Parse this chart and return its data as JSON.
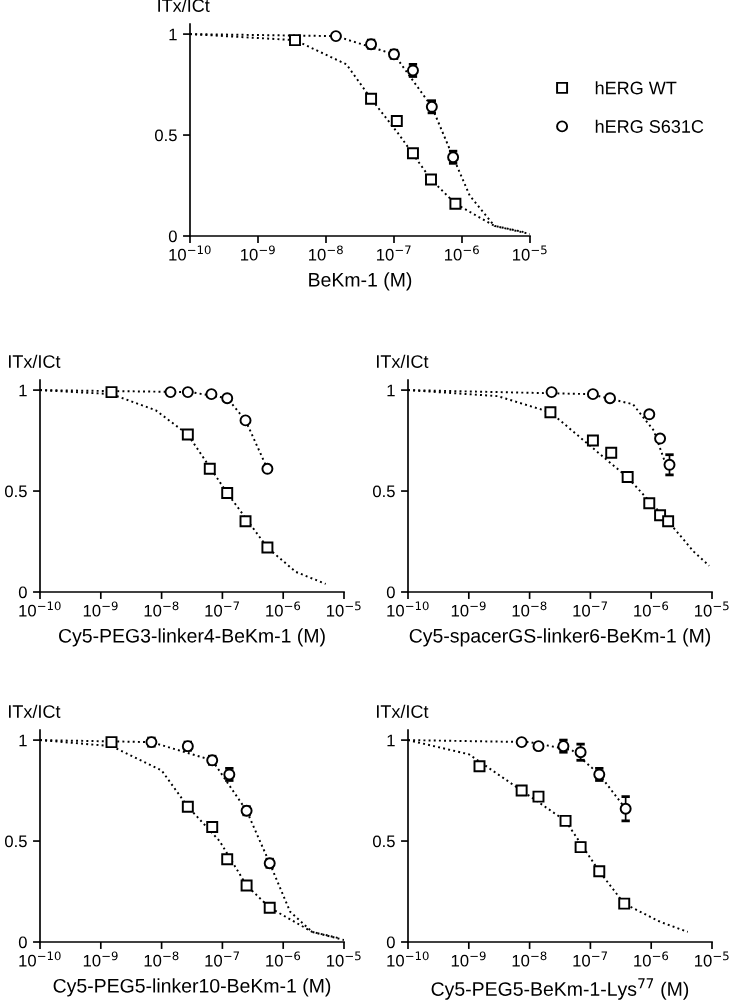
{
  "chart_data": [
    {
      "type": "scatter",
      "xlabel": "BeKm-1 (M)",
      "ylabel": "ITx/ICt",
      "log": "x",
      "xlim": [
        1e-10,
        1e-05
      ],
      "xticks": [
        {
          "value": 1e-10,
          "label": "10$^{−10}$"
        },
        {
          "value": 1e-09,
          "label": "10$^{−9}$"
        },
        {
          "value": 1e-08,
          "label": "10$^{−8}$"
        },
        {
          "value": 1e-07,
          "label": "10$^{−7}$"
        },
        {
          "value": 1e-06,
          "label": "10$^{−6}$"
        },
        {
          "value": 1e-05,
          "label": "10$^{−5}$"
        }
      ],
      "ylim": [
        0,
        1.05
      ],
      "yticks": [
        0,
        0.5,
        1
      ],
      "grid": false,
      "legend": "right",
      "series": [
        {
          "name": "hERG WT",
          "color": "#000000",
          "marker": "square",
          "x": [
            3.5e-09,
            4.6e-08,
            1.1e-07,
            1.9e-07,
            3.5e-07,
            8e-07
          ],
          "values": [
            0.97,
            0.68,
            0.57,
            0.41,
            0.28,
            0.16
          ]
        },
        {
          "name": "hERG S631C",
          "color": "#000000",
          "marker": "circle",
          "x": [
            1.4e-08,
            4.6e-08,
            1e-07,
            1.9e-07,
            3.6e-07,
            7.4e-07
          ],
          "values": [
            0.99,
            0.95,
            0.9,
            0.82,
            0.64,
            0.39
          ],
          "errors": [
            0.01,
            0.02,
            0.02,
            0.03,
            0.03,
            0.03
          ]
        },
        {
          "type": "line",
          "color": "#000000",
          "marker": "none",
          "line_style": "dotted",
          "x": [
            1e-10,
            3.5e-09,
            2e-08,
            4.6e-08,
            1.2e-07,
            3.5e-07,
            8e-07,
            3e-06,
            8e-06
          ],
          "values": [
            1,
            0.97,
            0.85,
            0.68,
            0.5,
            0.28,
            0.16,
            0.05,
            0.02
          ]
        },
        {
          "type": "line",
          "color": "#000000",
          "marker": "none",
          "line_style": "dotted",
          "x": [
            1e-10,
            1.4e-08,
            1e-07,
            3.6e-07,
            7.4e-07,
            1.3e-06,
            3e-06,
            1e-05
          ],
          "values": [
            1,
            0.99,
            0.9,
            0.64,
            0.39,
            0.2,
            0.05,
            0.01
          ]
        }
      ]
    },
    {
      "type": "scatter",
      "xlabel": "Cy5-PEG3-linker4-BeKm-1 (M)",
      "ylabel": "ITx/ICt",
      "log": "x",
      "xlim": [
        1e-10,
        1e-05
      ],
      "xticks": [
        {
          "value": 1e-10,
          "label": "10$^{−10}$"
        },
        {
          "value": 1e-09,
          "label": "10$^{−9}$"
        },
        {
          "value": 1e-08,
          "label": "10$^{−8}$"
        },
        {
          "value": 1e-07,
          "label": "10$^{−7}$"
        },
        {
          "value": 1e-06,
          "label": "10$^{−6}$"
        },
        {
          "value": 1e-05,
          "label": "10$^{−5}$"
        }
      ],
      "ylim": [
        0,
        1.05
      ],
      "yticks": [
        0,
        0.5,
        1
      ],
      "grid": false,
      "series": [
        {
          "color": "#000000",
          "marker": "square",
          "x": [
            1.5e-09,
            2.7e-08,
            6.2e-08,
            1.2e-07,
            2.4e-07,
            5.5e-07
          ],
          "values": [
            0.99,
            0.78,
            0.61,
            0.49,
            0.35,
            0.22
          ]
        },
        {
          "color": "#000000",
          "marker": "circle",
          "x": [
            1.4e-08,
            2.7e-08,
            6.6e-08,
            1.2e-07,
            2.4e-07,
            5.5e-07
          ],
          "values": [
            0.99,
            0.99,
            0.98,
            0.96,
            0.85,
            0.61
          ]
        },
        {
          "type": "line",
          "color": "#000000",
          "marker": "none",
          "line_style": "dotted",
          "x": [
            1e-10,
            1.5e-09,
            8e-09,
            2.7e-08,
            1.2e-07,
            5.5e-07,
            1.6e-06,
            5e-06
          ],
          "values": [
            1,
            0.98,
            0.9,
            0.78,
            0.49,
            0.22,
            0.1,
            0.04
          ]
        },
        {
          "type": "line",
          "color": "#000000",
          "marker": "none",
          "line_style": "dotted",
          "x": [
            1e-10,
            3e-08,
            1.2e-07,
            2.4e-07,
            5.5e-07
          ],
          "values": [
            1,
            0.99,
            0.96,
            0.85,
            0.61
          ]
        }
      ]
    },
    {
      "type": "scatter",
      "xlabel": "Cy5-spacerGS-linker6-BeKm-1 (M)",
      "ylabel": "ITx/ICt",
      "log": "x",
      "xlim": [
        1e-10,
        1e-05
      ],
      "xticks": [
        {
          "value": 1e-10,
          "label": "10$^{−10}$"
        },
        {
          "value": 1e-09,
          "label": "10$^{−9}$"
        },
        {
          "value": 1e-08,
          "label": "10$^{−8}$"
        },
        {
          "value": 1e-07,
          "label": "10$^{−7}$"
        },
        {
          "value": 1e-06,
          "label": "10$^{−6}$"
        },
        {
          "value": 1e-05,
          "label": "10$^{−5}$"
        }
      ],
      "ylim": [
        0,
        1.05
      ],
      "yticks": [
        0,
        0.5,
        1
      ],
      "grid": false,
      "series": [
        {
          "color": "#000000",
          "marker": "square",
          "x": [
            2.2e-08,
            1.1e-07,
            2.2e-07,
            4.1e-07,
            9.3e-07,
            1.4e-06,
            1.9e-06
          ],
          "values": [
            0.89,
            0.75,
            0.69,
            0.57,
            0.44,
            0.38,
            0.35
          ]
        },
        {
          "color": "#000000",
          "marker": "circle",
          "x": [
            2.3e-08,
            1.1e-07,
            2.1e-07,
            9.3e-07,
            1.4e-06,
            2e-06
          ],
          "values": [
            0.99,
            0.98,
            0.96,
            0.88,
            0.76,
            0.63
          ],
          "errors": [
            null,
            null,
            null,
            null,
            null,
            0.05
          ]
        },
        {
          "type": "line",
          "color": "#000000",
          "marker": "none",
          "line_style": "dotted",
          "x": [
            1e-10,
            3e-09,
            2.2e-08,
            4e-07,
            1.9e-06,
            5e-06,
            9e-06
          ],
          "values": [
            1,
            0.97,
            0.89,
            0.57,
            0.35,
            0.2,
            0.13
          ]
        },
        {
          "type": "line",
          "color": "#000000",
          "marker": "none",
          "line_style": "dotted",
          "x": [
            1e-10,
            1e-07,
            5e-07,
            1.1e-06,
            1.9e-06
          ],
          "values": [
            1,
            0.98,
            0.93,
            0.8,
            0.6
          ]
        }
      ]
    },
    {
      "type": "scatter",
      "xlabel": "Cy5-PEG5-linker10-BeKm-1 (M)",
      "ylabel": "ITx/ICt",
      "log": "x",
      "xlim": [
        1e-10,
        1e-05
      ],
      "xticks": [
        {
          "value": 1e-10,
          "label": "10$^{−10}$"
        },
        {
          "value": 1e-09,
          "label": "10$^{−9}$"
        },
        {
          "value": 1e-08,
          "label": "10$^{−8}$"
        },
        {
          "value": 1e-07,
          "label": "10$^{−7}$"
        },
        {
          "value": 1e-06,
          "label": "10$^{−6}$"
        },
        {
          "value": 1e-05,
          "label": "10$^{−5}$"
        }
      ],
      "ylim": [
        0,
        1.05
      ],
      "yticks": [
        0,
        0.5,
        1
      ],
      "grid": false,
      "series": [
        {
          "color": "#000000",
          "marker": "square",
          "x": [
            1.5e-09,
            2.7e-08,
            6.8e-08,
            1.2e-07,
            2.5e-07,
            6e-07
          ],
          "values": [
            0.99,
            0.67,
            0.57,
            0.41,
            0.28,
            0.17
          ]
        },
        {
          "color": "#000000",
          "marker": "circle",
          "x": [
            6.8e-09,
            2.7e-08,
            6.8e-08,
            1.3e-07,
            2.5e-07,
            6e-07
          ],
          "values": [
            0.99,
            0.97,
            0.9,
            0.83,
            0.65,
            0.39
          ],
          "errors": [
            0.02,
            0.02,
            0.02,
            0.03,
            0.02,
            0.02
          ]
        },
        {
          "type": "line",
          "color": "#000000",
          "marker": "none",
          "line_style": "dotted",
          "x": [
            1e-10,
            1.5e-09,
            1e-08,
            2.7e-08,
            9e-08,
            2.5e-07,
            6e-07,
            3e-06,
            8e-06
          ],
          "values": [
            1,
            0.97,
            0.85,
            0.67,
            0.5,
            0.28,
            0.17,
            0.05,
            0.02
          ]
        },
        {
          "type": "line",
          "color": "#000000",
          "marker": "none",
          "line_style": "dotted",
          "x": [
            1e-10,
            6.8e-09,
            6.8e-08,
            2.5e-07,
            6e-07,
            1.3e-06,
            3e-06,
            1e-05
          ],
          "values": [
            1,
            0.99,
            0.9,
            0.65,
            0.39,
            0.15,
            0.05,
            0.01
          ]
        }
      ]
    },
    {
      "type": "scatter",
      "xlabel": "Cy5-PEG5-BeKm-1-Lys$^{77}$ (M)",
      "ylabel": "ITx/ICt",
      "log": "x",
      "xlim": [
        1e-10,
        1e-05
      ],
      "xticks": [
        {
          "value": 1e-10,
          "label": "10$^{−10}$"
        },
        {
          "value": 1e-09,
          "label": "10$^{−9}$"
        },
        {
          "value": 1e-08,
          "label": "10$^{−8}$"
        },
        {
          "value": 1e-07,
          "label": "10$^{−7}$"
        },
        {
          "value": 1e-06,
          "label": "10$^{−6}$"
        },
        {
          "value": 1e-05,
          "label": "10$^{−5}$"
        }
      ],
      "ylim": [
        0,
        1.05
      ],
      "yticks": [
        0,
        0.5,
        1
      ],
      "grid": false,
      "series": [
        {
          "color": "#000000",
          "marker": "square",
          "x": [
            1.5e-09,
            7.4e-09,
            1.4e-08,
            3.9e-08,
            6.9e-08,
            1.4e-07,
            3.6e-07
          ],
          "values": [
            0.87,
            0.75,
            0.72,
            0.6,
            0.47,
            0.35,
            0.19
          ],
          "errors": [
            null,
            null,
            null,
            null,
            0.02,
            null,
            null
          ]
        },
        {
          "color": "#000000",
          "marker": "circle",
          "x": [
            7.4e-09,
            1.4e-08,
            3.6e-08,
            6.9e-08,
            1.4e-07,
            3.8e-07
          ],
          "values": [
            0.99,
            0.97,
            0.97,
            0.94,
            0.83,
            0.66
          ],
          "errors": [
            null,
            null,
            0.03,
            0.04,
            0.03,
            0.06
          ]
        },
        {
          "type": "line",
          "color": "#000000",
          "marker": "none",
          "line_style": "dotted",
          "x": [
            1e-10,
            1e-09,
            7.4e-09,
            3.9e-08,
            1.4e-07,
            3.6e-07,
            1.4e-06,
            4e-06
          ],
          "values": [
            1,
            0.93,
            0.75,
            0.6,
            0.35,
            0.19,
            0.1,
            0.05
          ]
        },
        {
          "type": "line",
          "color": "#000000",
          "marker": "none",
          "line_style": "dotted",
          "x": [
            1e-10,
            1e-08,
            5e-08,
            1.4e-07,
            3.8e-07
          ],
          "values": [
            1,
            0.99,
            0.95,
            0.83,
            0.66
          ]
        }
      ]
    }
  ]
}
